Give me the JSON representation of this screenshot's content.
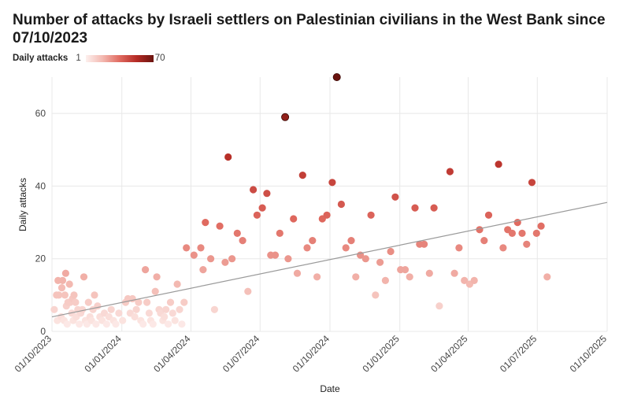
{
  "chart_data": {
    "type": "scatter",
    "title": "Number of attacks by Israeli settlers on Palestinian civilians in the West Bank since 07/10/2023",
    "xlabel": "Date",
    "ylabel": "Daily attacks",
    "legend": {
      "title": "Daily attacks",
      "min_label": "1",
      "max_label": "70",
      "min": 1,
      "max": 70,
      "placement": "top-left"
    },
    "x_ticks": [
      "2023-10-01",
      "2024-01-01",
      "2024-04-01",
      "2024-07-01",
      "2024-10-01",
      "2025-01-01",
      "2025-04-01",
      "2025-07-01",
      "2025-10-01"
    ],
    "x_tick_labels": [
      "01/10/2023",
      "01/01/2024",
      "01/04/2024",
      "01/07/2024",
      "01/10/2024",
      "01/01/2025",
      "01/04/2025",
      "01/07/2025",
      "01/10/2025"
    ],
    "xlim": [
      "2023-10-01",
      "2025-10-01"
    ],
    "y_ticks": [
      0,
      20,
      40,
      60
    ],
    "y_tick_labels": [
      "0",
      "20",
      "40",
      "60"
    ],
    "ylim": [
      0,
      70
    ],
    "grid": true,
    "trendline": {
      "start": [
        "2023-10-01",
        4
      ],
      "end": [
        "2025-10-01",
        35.5
      ]
    },
    "color_scale": [
      "#fdf0ee",
      "#f3b8b0",
      "#e06a60",
      "#b52b25",
      "#6a140f"
    ],
    "points": [
      {
        "date": "2023-10-04",
        "value": 6
      },
      {
        "date": "2023-10-07",
        "value": 10
      },
      {
        "date": "2023-10-08",
        "value": 3
      },
      {
        "date": "2023-10-09",
        "value": 14
      },
      {
        "date": "2023-10-10",
        "value": 10
      },
      {
        "date": "2023-10-13",
        "value": 4
      },
      {
        "date": "2023-10-14",
        "value": 12
      },
      {
        "date": "2023-10-15",
        "value": 14
      },
      {
        "date": "2023-10-17",
        "value": 3
      },
      {
        "date": "2023-10-18",
        "value": 10
      },
      {
        "date": "2023-10-19",
        "value": 16
      },
      {
        "date": "2023-10-20",
        "value": 7
      },
      {
        "date": "2023-10-21",
        "value": 2
      },
      {
        "date": "2023-10-22",
        "value": 8
      },
      {
        "date": "2023-10-24",
        "value": 13
      },
      {
        "date": "2023-10-25",
        "value": 8
      },
      {
        "date": "2023-10-27",
        "value": 5
      },
      {
        "date": "2023-10-28",
        "value": 9
      },
      {
        "date": "2023-10-29",
        "value": 3
      },
      {
        "date": "2023-10-30",
        "value": 10
      },
      {
        "date": "2023-11-01",
        "value": 8
      },
      {
        "date": "2023-11-02",
        "value": 4
      },
      {
        "date": "2023-11-04",
        "value": 6
      },
      {
        "date": "2023-11-06",
        "value": 2
      },
      {
        "date": "2023-11-08",
        "value": 5
      },
      {
        "date": "2023-11-10",
        "value": 6
      },
      {
        "date": "2023-11-12",
        "value": 15
      },
      {
        "date": "2023-11-14",
        "value": 3
      },
      {
        "date": "2023-11-16",
        "value": 2
      },
      {
        "date": "2023-11-18",
        "value": 8
      },
      {
        "date": "2023-11-20",
        "value": 4
      },
      {
        "date": "2023-11-22",
        "value": 3
      },
      {
        "date": "2023-11-24",
        "value": 6
      },
      {
        "date": "2023-11-26",
        "value": 10
      },
      {
        "date": "2023-11-28",
        "value": 2
      },
      {
        "date": "2023-11-30",
        "value": 7
      },
      {
        "date": "2023-12-03",
        "value": 4
      },
      {
        "date": "2023-12-06",
        "value": 3
      },
      {
        "date": "2023-12-09",
        "value": 5
      },
      {
        "date": "2023-12-12",
        "value": 2
      },
      {
        "date": "2023-12-15",
        "value": 4
      },
      {
        "date": "2023-12-18",
        "value": 6
      },
      {
        "date": "2023-12-21",
        "value": 3
      },
      {
        "date": "2023-12-24",
        "value": 2
      },
      {
        "date": "2023-12-28",
        "value": 5
      },
      {
        "date": "2024-01-02",
        "value": 3
      },
      {
        "date": "2024-01-06",
        "value": 8
      },
      {
        "date": "2024-01-09",
        "value": 9
      },
      {
        "date": "2024-01-12",
        "value": 5
      },
      {
        "date": "2024-01-15",
        "value": 9
      },
      {
        "date": "2024-01-18",
        "value": 4
      },
      {
        "date": "2024-01-20",
        "value": 6
      },
      {
        "date": "2024-01-23",
        "value": 8
      },
      {
        "date": "2024-01-26",
        "value": 3
      },
      {
        "date": "2024-01-29",
        "value": 2
      },
      {
        "date": "2024-02-01",
        "value": 17
      },
      {
        "date": "2024-02-03",
        "value": 8
      },
      {
        "date": "2024-02-06",
        "value": 5
      },
      {
        "date": "2024-02-08",
        "value": 3
      },
      {
        "date": "2024-02-11",
        "value": 2
      },
      {
        "date": "2024-02-14",
        "value": 11
      },
      {
        "date": "2024-02-16",
        "value": 15
      },
      {
        "date": "2024-02-19",
        "value": 6
      },
      {
        "date": "2024-02-21",
        "value": 5
      },
      {
        "date": "2024-02-24",
        "value": 3
      },
      {
        "date": "2024-02-26",
        "value": 4
      },
      {
        "date": "2024-02-28",
        "value": 6
      },
      {
        "date": "2024-03-02",
        "value": 2
      },
      {
        "date": "2024-03-05",
        "value": 8
      },
      {
        "date": "2024-03-08",
        "value": 5
      },
      {
        "date": "2024-03-11",
        "value": 3
      },
      {
        "date": "2024-03-14",
        "value": 13
      },
      {
        "date": "2024-03-17",
        "value": 6
      },
      {
        "date": "2024-03-20",
        "value": 2
      },
      {
        "date": "2024-03-23",
        "value": 8
      },
      {
        "date": "2024-03-26",
        "value": 23
      },
      {
        "date": "2024-04-05",
        "value": 21
      },
      {
        "date": "2024-04-14",
        "value": 23
      },
      {
        "date": "2024-04-17",
        "value": 17
      },
      {
        "date": "2024-04-20",
        "value": 30
      },
      {
        "date": "2024-04-27",
        "value": 20
      },
      {
        "date": "2024-05-02",
        "value": 6
      },
      {
        "date": "2024-05-09",
        "value": 29
      },
      {
        "date": "2024-05-16",
        "value": 19
      },
      {
        "date": "2024-05-20",
        "value": 48
      },
      {
        "date": "2024-05-25",
        "value": 20
      },
      {
        "date": "2024-06-01",
        "value": 27
      },
      {
        "date": "2024-06-08",
        "value": 25
      },
      {
        "date": "2024-06-15",
        "value": 11
      },
      {
        "date": "2024-06-22",
        "value": 39
      },
      {
        "date": "2024-06-27",
        "value": 32
      },
      {
        "date": "2024-07-04",
        "value": 34
      },
      {
        "date": "2024-07-10",
        "value": 38
      },
      {
        "date": "2024-07-15",
        "value": 21
      },
      {
        "date": "2024-07-21",
        "value": 21
      },
      {
        "date": "2024-07-27",
        "value": 27
      },
      {
        "date": "2024-08-03",
        "value": 59
      },
      {
        "date": "2024-08-07",
        "value": 20
      },
      {
        "date": "2024-08-14",
        "value": 31
      },
      {
        "date": "2024-08-19",
        "value": 16
      },
      {
        "date": "2024-08-26",
        "value": 43
      },
      {
        "date": "2024-09-01",
        "value": 23
      },
      {
        "date": "2024-09-08",
        "value": 25
      },
      {
        "date": "2024-09-14",
        "value": 15
      },
      {
        "date": "2024-09-21",
        "value": 31
      },
      {
        "date": "2024-09-27",
        "value": 32
      },
      {
        "date": "2024-10-04",
        "value": 41
      },
      {
        "date": "2024-10-10",
        "value": 70
      },
      {
        "date": "2024-10-16",
        "value": 35
      },
      {
        "date": "2024-10-22",
        "value": 23
      },
      {
        "date": "2024-10-29",
        "value": 25
      },
      {
        "date": "2024-11-04",
        "value": 15
      },
      {
        "date": "2024-11-10",
        "value": 21
      },
      {
        "date": "2024-11-17",
        "value": 20
      },
      {
        "date": "2024-11-24",
        "value": 32
      },
      {
        "date": "2024-11-30",
        "value": 10
      },
      {
        "date": "2024-12-06",
        "value": 19
      },
      {
        "date": "2024-12-13",
        "value": 14
      },
      {
        "date": "2024-12-20",
        "value": 22
      },
      {
        "date": "2024-12-26",
        "value": 37
      },
      {
        "date": "2025-01-02",
        "value": 17
      },
      {
        "date": "2025-01-08",
        "value": 17
      },
      {
        "date": "2025-01-14",
        "value": 15
      },
      {
        "date": "2025-01-21",
        "value": 34
      },
      {
        "date": "2025-01-27",
        "value": 24
      },
      {
        "date": "2025-02-02",
        "value": 24
      },
      {
        "date": "2025-02-09",
        "value": 16
      },
      {
        "date": "2025-02-15",
        "value": 34
      },
      {
        "date": "2025-02-22",
        "value": 7
      },
      {
        "date": "2025-03-08",
        "value": 44
      },
      {
        "date": "2025-03-14",
        "value": 16
      },
      {
        "date": "2025-03-20",
        "value": 23
      },
      {
        "date": "2025-03-27",
        "value": 14
      },
      {
        "date": "2025-04-03",
        "value": 13
      },
      {
        "date": "2025-04-09",
        "value": 14
      },
      {
        "date": "2025-04-16",
        "value": 28
      },
      {
        "date": "2025-04-22",
        "value": 25
      },
      {
        "date": "2025-04-28",
        "value": 32
      },
      {
        "date": "2025-05-11",
        "value": 46
      },
      {
        "date": "2025-05-17",
        "value": 23
      },
      {
        "date": "2025-05-23",
        "value": 28
      },
      {
        "date": "2025-05-29",
        "value": 27
      },
      {
        "date": "2025-06-05",
        "value": 30
      },
      {
        "date": "2025-06-11",
        "value": 27
      },
      {
        "date": "2025-06-17",
        "value": 24
      },
      {
        "date": "2025-06-24",
        "value": 41
      },
      {
        "date": "2025-06-30",
        "value": 27
      },
      {
        "date": "2025-07-06",
        "value": 29
      },
      {
        "date": "2025-07-14",
        "value": 15
      }
    ]
  }
}
